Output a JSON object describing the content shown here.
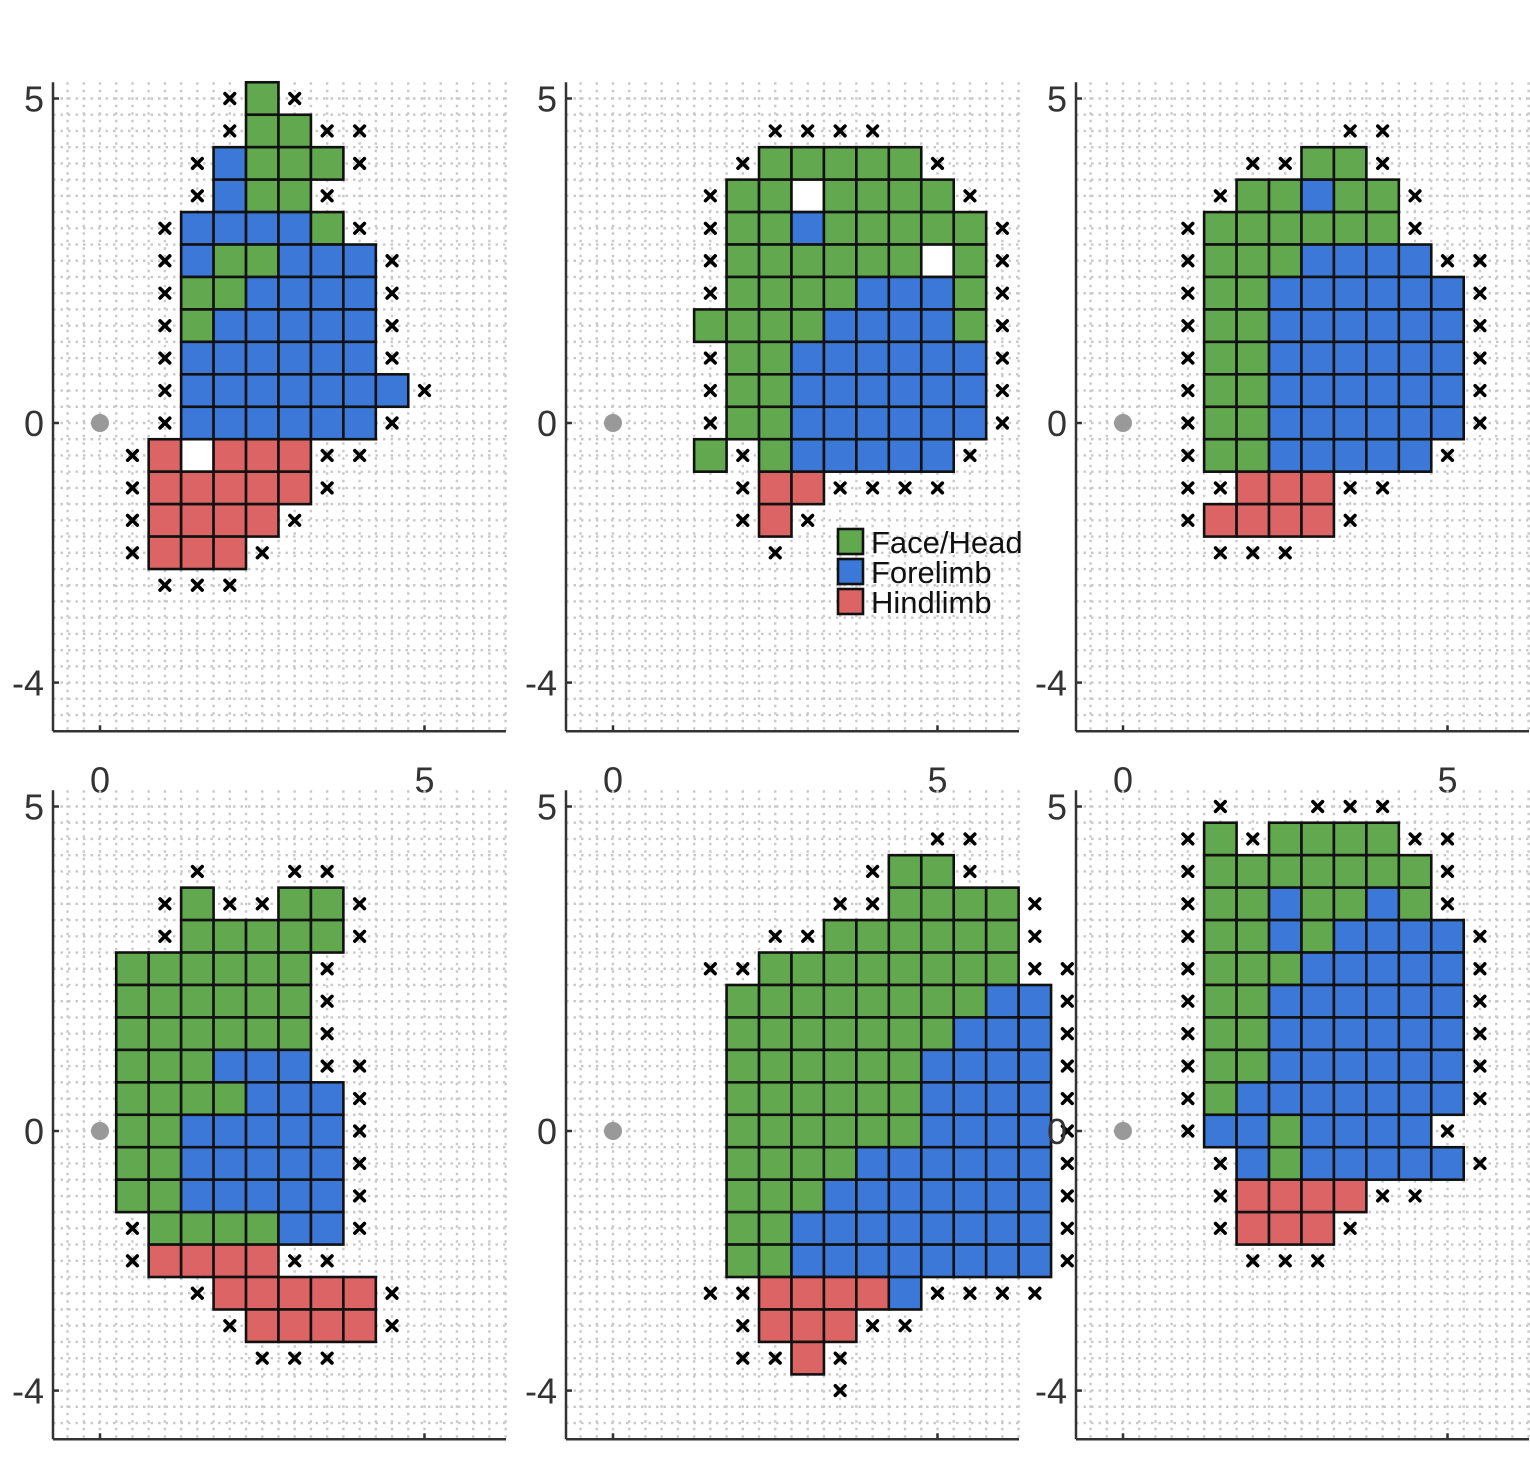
{
  "chart_data": {
    "type": "heatmap",
    "grid_spacing": 0.5,
    "xlim": [
      -0.75,
      6.25
    ],
    "ylim": [
      -4.75,
      5.25
    ],
    "x_ticks": [
      0,
      5
    ],
    "x_tick_labels": [
      "0",
      "5"
    ],
    "y_ticks": [
      -4,
      0,
      5
    ],
    "y_tick_labels": [
      "-4",
      "0",
      "5"
    ],
    "grid": true,
    "reference_point": [
      0,
      0
    ],
    "categories": [
      {
        "code": "G",
        "name": "Face/Head",
        "color": "#62a84e"
      },
      {
        "code": "B",
        "name": "Forelimb",
        "color": "#3b78d8"
      },
      {
        "code": "R",
        "name": "Hindlimb",
        "color": "#dd6464"
      }
    ],
    "legend": {
      "placement": "inside-lower-right",
      "panel": 2
    },
    "notes": "Each map: rows listed from top (y = y_top) downward in steps of 0.5; characters are cells at x = x0 + 0.5*i. G/B/R = responsive site by body region, x = non-responsive site, o = unmapped site, '.' = empty.",
    "maps": [
      {
        "panel": 1,
        "x0": 0.5,
        "y_top": 5,
        "rows": [
          "...xGx....",
          "...xGGxx..",
          "..xBGGGx..",
          "..xBGGx...",
          ".xBBBBGx..",
          ".xBGGBBBx.",
          ".xGGBBBBx.",
          ".xGBBBBBx.",
          ".xBBBBBBx.",
          ".xBBBBBBBx",
          ".xBBBBBBx.",
          "xRoRRRxx..",
          "xRRRRRx...",
          "xRRRRx....",
          "xRRRx.....",
          ".xxx......"
        ]
      },
      {
        "panel": 2,
        "x0": 0.5,
        "y_top": 4.5,
        "rows": [
          "....xxxx....",
          "...xGGGGGx..",
          "..xGGoGGGGx.",
          "..xGGBGGGGGx",
          "..xGGGGGGoGx",
          "..xGGGGBBBGx",
          "..GGGGBBBBGx",
          "..xGGBBBBBBx",
          "..xGGBBBBBBx",
          "..xGGBBBBBBx",
          "..GxGBBBBBx.",
          "...xRRxxxx..",
          "...xRx......",
          "....x......."
        ]
      },
      {
        "panel": 3,
        "x0": 0.5,
        "y_top": 4.5,
        "rows": [
          "......xx...",
          "...xxGGx...",
          "..xGGBGGx..",
          ".xGGGGGGx..",
          ".xGGGBBBBxx",
          ".xGGBBBBBBx",
          ".xGGBBBBBBx",
          ".xGGBBBBBBx",
          ".xGGBBBBBBx",
          ".xGGBBBBBBx",
          ".xGGBBBBBx.",
          ".xxRRRxx...",
          ".xRRRRx....",
          "..xxx......"
        ]
      },
      {
        "panel": 4,
        "x0": 0.5,
        "y_top": 4,
        "rows": [
          "..x..xx...",
          ".xGxxGGx..",
          ".xGGGGGx..",
          "GGGGGGx...",
          "GGGGGGx...",
          "GGGGGGx...",
          "GGGBBBxx..",
          "GGGGBBBx..",
          "GGBBBBBx..",
          "GGBBBBBx..",
          "GGBBBBBx..",
          "xGGGGBBx..",
          "xRRRRxx...",
          "..xRRRRRx.",
          "...xRRRRx.",
          "....xxx..."
        ]
      },
      {
        "panel": 5,
        "x0": 0.5,
        "y_top": 4.5,
        "rows": [
          ".........xx...",
          ".......xGGx...",
          "......xxGGGGx.",
          "....xxGGGGGGx.",
          "..xxGGGGGGGGxx",
          "...GGGGGGGGBBx",
          "...GGGGGGGBBBx",
          "...GGGGGGBBBBx",
          "...GGGGGGBBBBx",
          "...GGGGGGBBBBx",
          "...GGGGBBBBBBx",
          "...GGGBBBBBBBx",
          "...GGBBBBBBBBx",
          "...GGBBBBBBBBx",
          "..xxRRRRBxxxx.",
          "...xRRRxx.....",
          "...xxRx.......",
          "......x......."
        ]
      },
      {
        "panel": 6,
        "x0": 1,
        "y_top": 5,
        "rows": [
          ".x..xxx....",
          "xGxGGGGxx..",
          "xGGGGGGGx..",
          "xGGBGGBGx..",
          "xGGBGBBBBx.",
          "xGGGBBBBBx.",
          "xGGBBBBBBx.",
          "xGGBBBBBBx.",
          "xGGBBBBBBx.",
          "xGBBBBBBBx.",
          "xBBGBBBBx..",
          ".xBGBBBBBx.",
          ".xRRRRxx...",
          ".xRRRx.....",
          "..xxx......"
        ]
      }
    ]
  }
}
